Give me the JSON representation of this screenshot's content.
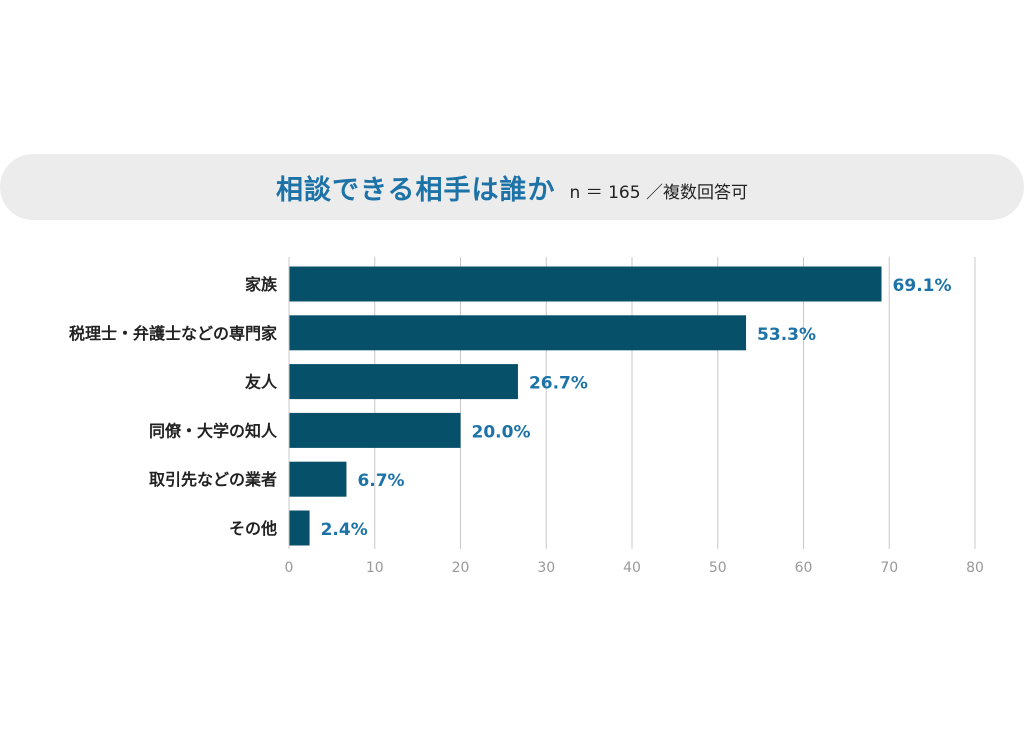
{
  "header": {
    "title": "相談できる相手は誰か",
    "subtitle": "n ＝ 165 ／複数回答可"
  },
  "colors": {
    "bar": "#07506a",
    "title": "#1d73a8",
    "value_label": "#1d73a8",
    "grid": "#c8c8c8",
    "tick": "#999999",
    "category_label": "#222222",
    "title_band": "#ececec"
  },
  "chart_data": {
    "type": "bar",
    "orientation": "horizontal",
    "title": "相談できる相手は誰か",
    "subtitle": "n ＝ 165 ／複数回答可",
    "categories": [
      "家族",
      "税理士・弁護士などの専門家",
      "友人",
      "同僚・大学の知人",
      "取引先などの業者",
      "その他"
    ],
    "values": [
      69.1,
      53.3,
      26.7,
      20.0,
      6.7,
      2.4
    ],
    "value_labels": [
      "69.1%",
      "53.3%",
      "26.7%",
      "20.0%",
      "6.7%",
      "2.4%"
    ],
    "xlim": [
      0,
      80
    ],
    "xticks": [
      0,
      10,
      20,
      30,
      40,
      50,
      60,
      70,
      80
    ],
    "xlabel": "",
    "ylabel": "",
    "grid": "vertical",
    "legend": "none"
  }
}
